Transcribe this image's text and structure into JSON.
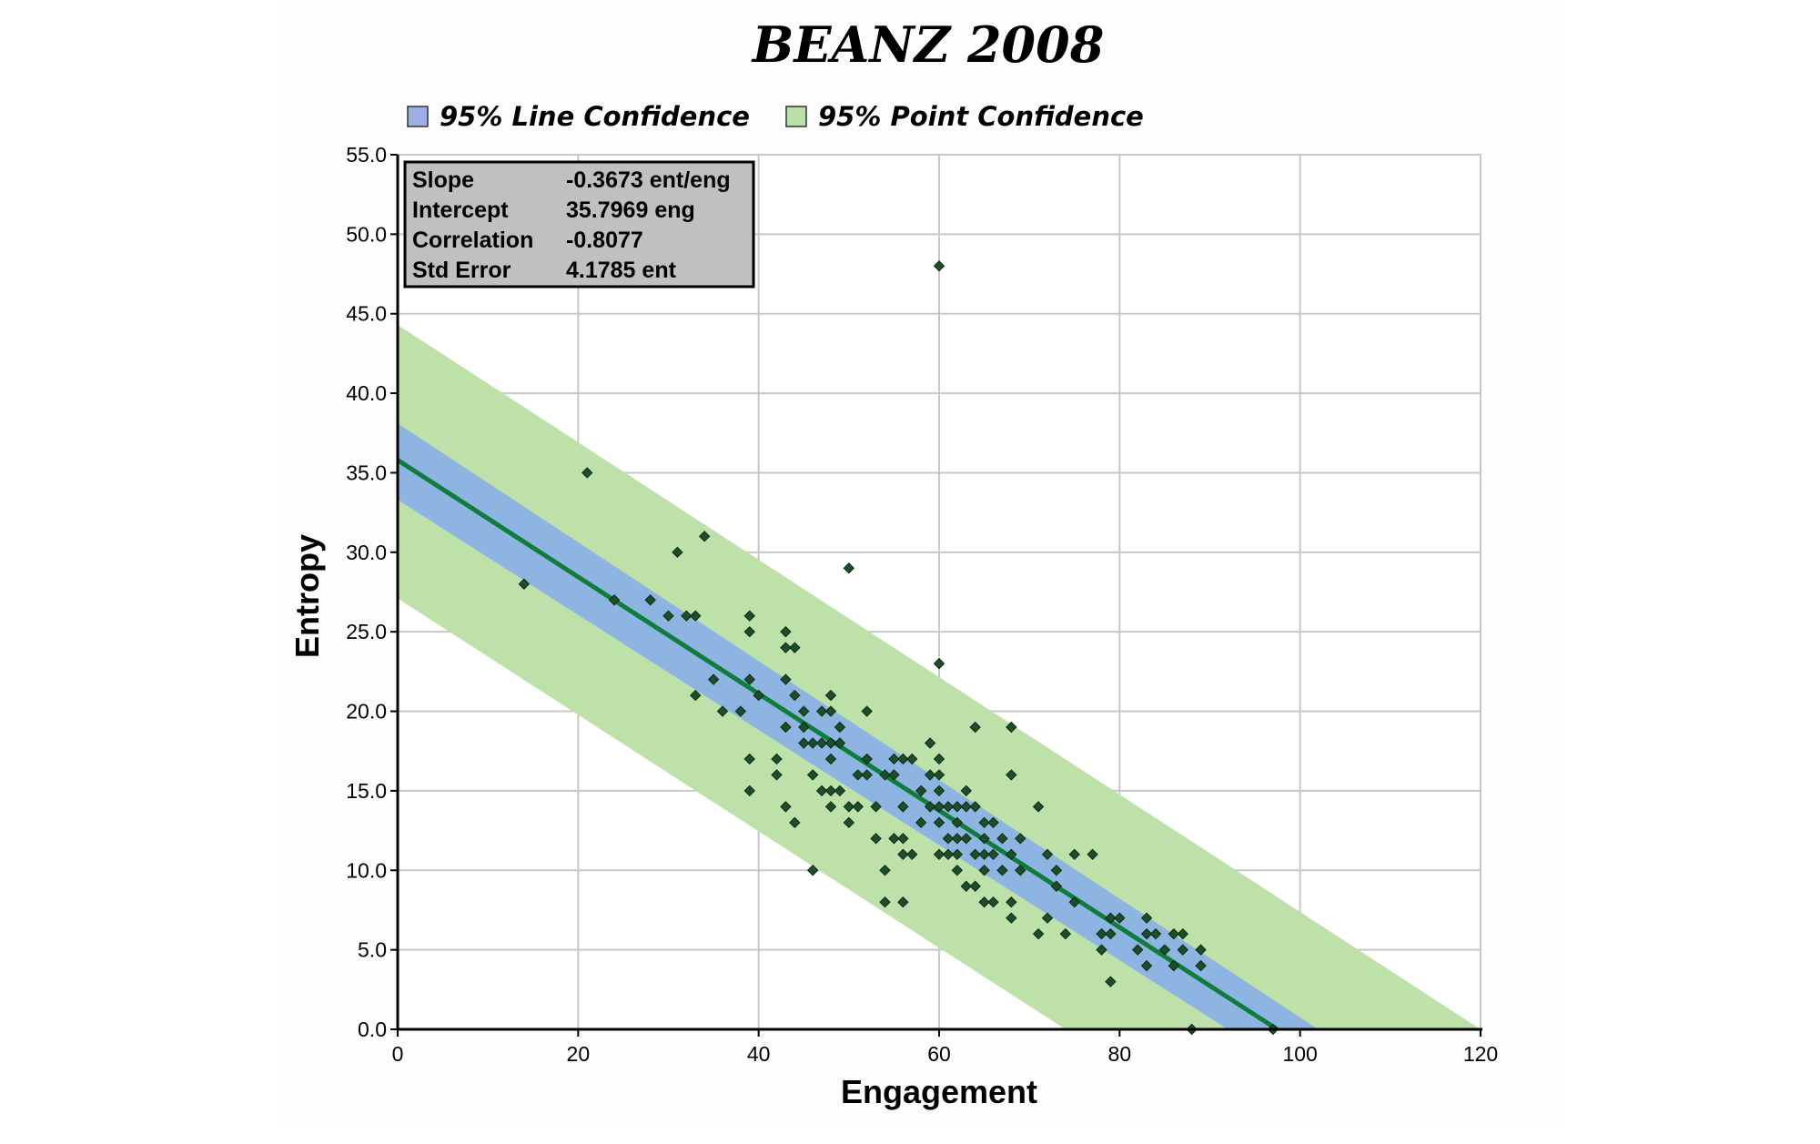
{
  "chart_data": {
    "type": "scatter",
    "title": "BEANZ 2008",
    "xlabel": "Engagement",
    "ylabel": "Entropy",
    "xlim": [
      0,
      120
    ],
    "ylim": [
      0,
      55
    ],
    "xticks": [
      "0",
      "20",
      "40",
      "60",
      "80",
      "100",
      "120"
    ],
    "yticks": [
      "0.0",
      "5.0",
      "10.0",
      "15.0",
      "20.0",
      "25.0",
      "30.0",
      "35.0",
      "40.0",
      "45.0",
      "50.0",
      "55.0"
    ],
    "grid": true,
    "legend": {
      "placement": "top",
      "entries": [
        {
          "label": "95% Line Confidence",
          "color": "#9eaee6"
        },
        {
          "label": "95% Point Confidence",
          "color": "#b9e1a5"
        }
      ]
    },
    "stats": [
      {
        "label": "Slope",
        "value": "-0.3673 ent/eng"
      },
      {
        "label": "Intercept",
        "value": "35.7969 eng"
      },
      {
        "label": "Correlation",
        "value": "-0.8077"
      },
      {
        "label": "Std Error",
        "value": "4.1785 ent"
      }
    ],
    "regression": {
      "slope": -0.3673,
      "intercept": 35.7969,
      "color": "#0e7c3c"
    },
    "point_band": {
      "color": "#bde1a9",
      "upper": [
        [
          0,
          44.3
        ],
        [
          120,
          0
        ]
      ],
      "lower": [
        [
          0,
          27.1
        ],
        [
          74,
          0
        ]
      ]
    },
    "line_band": {
      "color": "#8eb4e2",
      "upper": [
        [
          0,
          38.1
        ],
        [
          102,
          0
        ]
      ],
      "lower": [
        [
          0,
          33.3
        ],
        [
          92,
          0
        ]
      ]
    },
    "marker_color": "#1e4d2b",
    "points": [
      [
        14,
        28
      ],
      [
        21,
        35
      ],
      [
        24,
        27
      ],
      [
        28,
        27
      ],
      [
        30,
        26
      ],
      [
        31,
        30
      ],
      [
        32,
        26
      ],
      [
        33,
        26
      ],
      [
        33,
        21
      ],
      [
        34,
        31
      ],
      [
        35,
        22
      ],
      [
        36,
        20
      ],
      [
        38,
        20
      ],
      [
        39,
        26
      ],
      [
        39,
        25
      ],
      [
        39,
        22
      ],
      [
        39,
        17
      ],
      [
        39,
        15
      ],
      [
        40,
        21
      ],
      [
        42,
        17
      ],
      [
        42,
        16
      ],
      [
        43,
        25
      ],
      [
        43,
        24
      ],
      [
        43,
        22
      ],
      [
        43,
        19
      ],
      [
        43,
        14
      ],
      [
        44,
        24
      ],
      [
        44,
        21
      ],
      [
        44,
        13
      ],
      [
        45,
        20
      ],
      [
        45,
        19
      ],
      [
        45,
        18
      ],
      [
        46,
        18
      ],
      [
        46,
        16
      ],
      [
        46,
        10
      ],
      [
        47,
        20
      ],
      [
        47,
        18
      ],
      [
        47,
        15
      ],
      [
        48,
        21
      ],
      [
        48,
        20
      ],
      [
        48,
        18
      ],
      [
        48,
        17
      ],
      [
        48,
        15
      ],
      [
        48,
        14
      ],
      [
        49,
        19
      ],
      [
        49,
        18
      ],
      [
        49,
        15
      ],
      [
        50,
        29
      ],
      [
        50,
        14
      ],
      [
        50,
        13
      ],
      [
        51,
        16
      ],
      [
        51,
        14
      ],
      [
        52,
        20
      ],
      [
        52,
        17
      ],
      [
        52,
        16
      ],
      [
        53,
        14
      ],
      [
        53,
        12
      ],
      [
        54,
        16
      ],
      [
        54,
        10
      ],
      [
        54,
        8
      ],
      [
        55,
        17
      ],
      [
        55,
        16
      ],
      [
        55,
        12
      ],
      [
        56,
        17
      ],
      [
        56,
        14
      ],
      [
        56,
        12
      ],
      [
        56,
        11
      ],
      [
        56,
        8
      ],
      [
        57,
        17
      ],
      [
        57,
        11
      ],
      [
        58,
        15
      ],
      [
        58,
        13
      ],
      [
        59,
        18
      ],
      [
        59,
        16
      ],
      [
        59,
        14
      ],
      [
        60,
        23
      ],
      [
        60,
        17
      ],
      [
        60,
        16
      ],
      [
        60,
        15
      ],
      [
        60,
        14
      ],
      [
        60,
        13
      ],
      [
        60,
        11
      ],
      [
        61,
        14
      ],
      [
        61,
        12
      ],
      [
        61,
        11
      ],
      [
        62,
        14
      ],
      [
        62,
        13
      ],
      [
        62,
        12
      ],
      [
        62,
        11
      ],
      [
        62,
        10
      ],
      [
        63,
        15
      ],
      [
        63,
        14
      ],
      [
        63,
        12
      ],
      [
        63,
        9
      ],
      [
        64,
        19
      ],
      [
        64,
        14
      ],
      [
        64,
        11
      ],
      [
        64,
        9
      ],
      [
        65,
        13
      ],
      [
        65,
        12
      ],
      [
        65,
        11
      ],
      [
        65,
        10
      ],
      [
        65,
        8
      ],
      [
        66,
        13
      ],
      [
        66,
        11
      ],
      [
        66,
        8
      ],
      [
        67,
        12
      ],
      [
        67,
        10
      ],
      [
        68,
        19
      ],
      [
        68,
        16
      ],
      [
        68,
        11
      ],
      [
        68,
        8
      ],
      [
        68,
        7
      ],
      [
        69,
        12
      ],
      [
        69,
        10
      ],
      [
        71,
        14
      ],
      [
        71,
        6
      ],
      [
        72,
        11
      ],
      [
        72,
        7
      ],
      [
        73,
        10
      ],
      [
        73,
        9
      ],
      [
        74,
        6
      ],
      [
        75,
        11
      ],
      [
        75,
        8
      ],
      [
        77,
        11
      ],
      [
        78,
        6
      ],
      [
        78,
        5
      ],
      [
        79,
        7
      ],
      [
        79,
        6
      ],
      [
        79,
        3
      ],
      [
        80,
        7
      ],
      [
        82,
        5
      ],
      [
        83,
        7
      ],
      [
        83,
        6
      ],
      [
        83,
        4
      ],
      [
        84,
        6
      ],
      [
        85,
        5
      ],
      [
        86,
        6
      ],
      [
        86,
        4
      ],
      [
        87,
        6
      ],
      [
        87,
        5
      ],
      [
        88,
        0
      ],
      [
        89,
        5
      ],
      [
        89,
        4
      ],
      [
        97,
        0
      ],
      [
        60,
        48
      ]
    ]
  }
}
